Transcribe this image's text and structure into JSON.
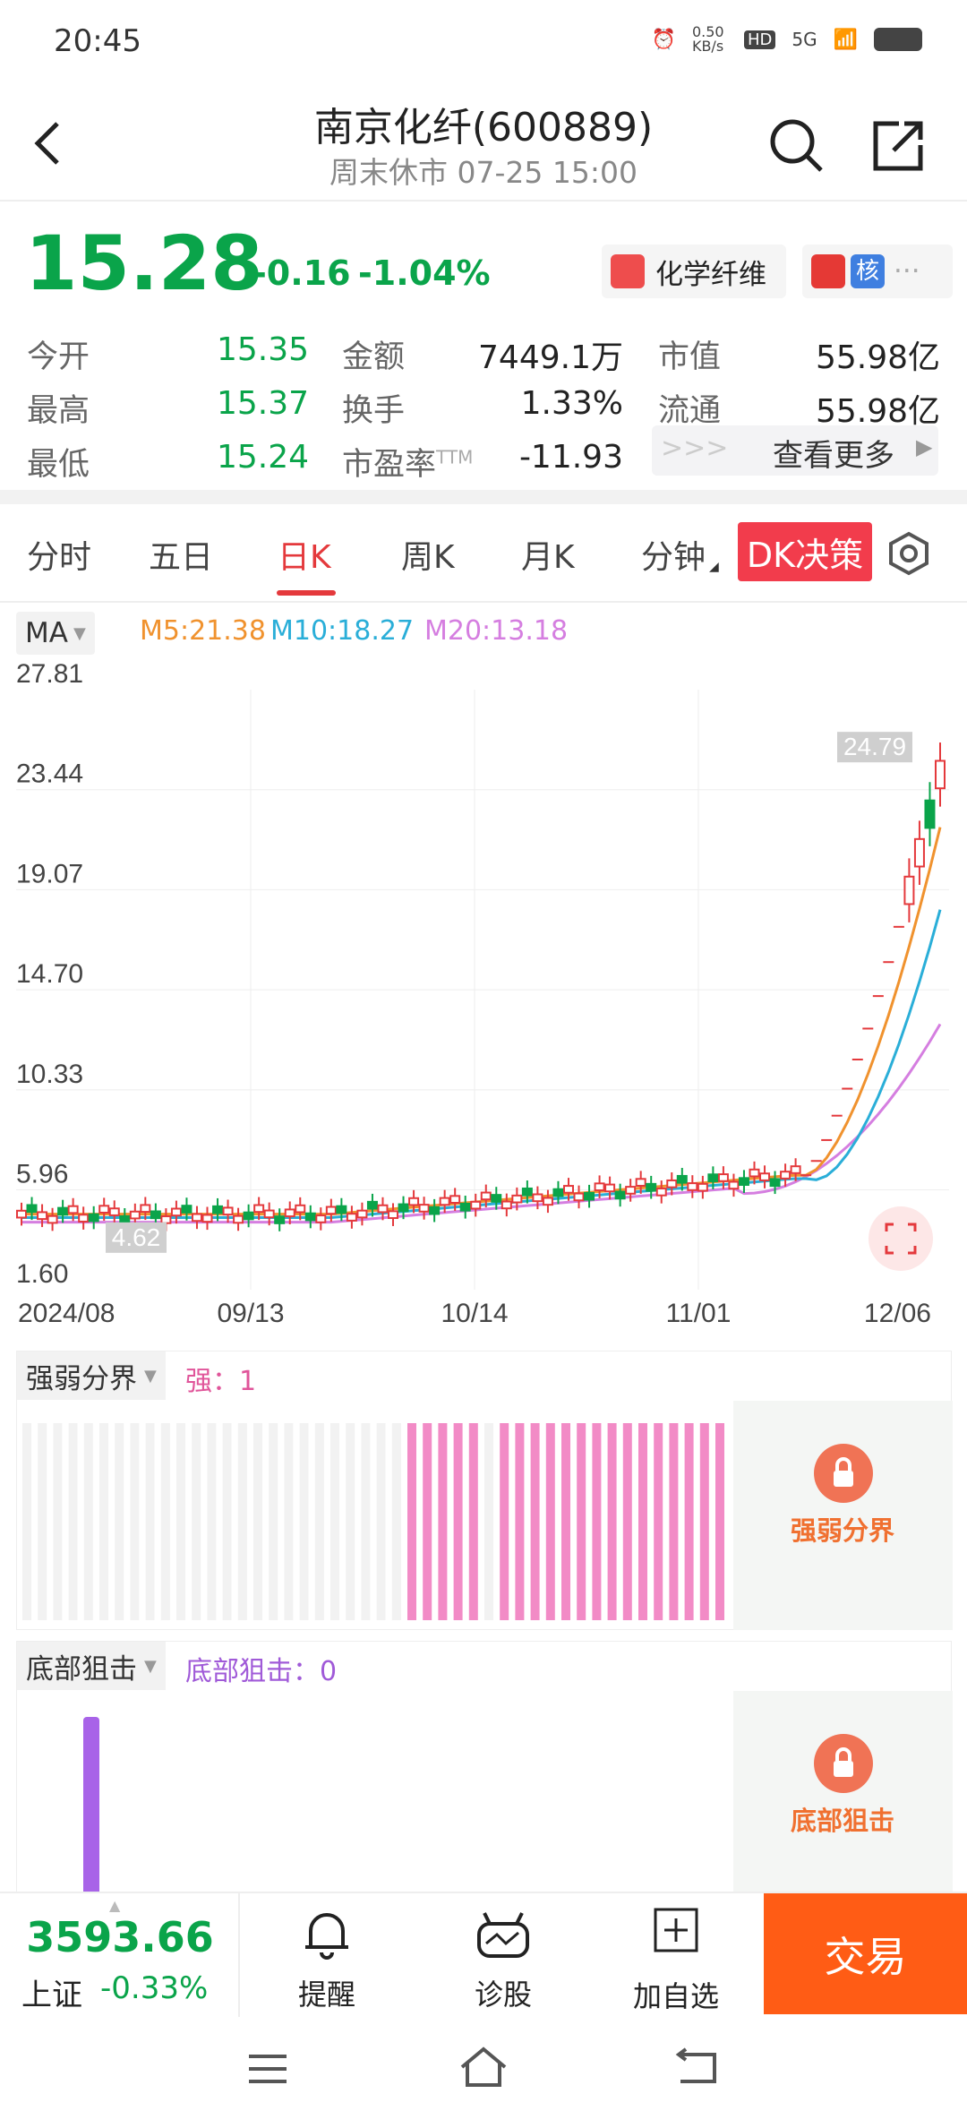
{
  "status_bar": {
    "time": "20:45",
    "net_speed": "0.50 KB/s",
    "hd": "HD",
    "signal": "5G"
  },
  "header": {
    "title": "南京化纤(600889)",
    "subtitle": "周末休市 07-25 15:00"
  },
  "quote": {
    "price": "15.28",
    "change": "-0.16",
    "change_pct": "-1.04%",
    "sector_tag": "化学纤维",
    "core_tag": "核",
    "more_dots": "···",
    "stats": [
      {
        "label": "今开",
        "value": "15.35"
      },
      {
        "label": "最高",
        "value": "15.37"
      },
      {
        "label": "最低",
        "value": "15.24"
      },
      {
        "label": "金额",
        "value": "7449.1万"
      },
      {
        "label": "换手",
        "value": "1.33%"
      },
      {
        "label": "市盈率",
        "label_sup": "TTM",
        "value": "-11.93"
      },
      {
        "label": "市值",
        "value": "55.98亿"
      },
      {
        "label": "流通",
        "value": "55.98亿"
      }
    ],
    "see_more": "查看更多",
    "see_more_arrows": ">>>"
  },
  "tabs": {
    "items": [
      "分时",
      "五日",
      "日K",
      "周K",
      "月K",
      "分钟"
    ],
    "active": "日K",
    "dk_label": "DK决策"
  },
  "indicator": {
    "selector": "MA",
    "m5": "M5:21.38",
    "m10": "M10:18.27",
    "m20": "M20:13.18"
  },
  "chart_data": {
    "type": "candlestick",
    "y_ticks": [
      "27.81",
      "23.44",
      "19.07",
      "14.70",
      "10.33",
      "5.96",
      "1.60"
    ],
    "ylim": [
      1.6,
      27.81
    ],
    "x_ticks": [
      "2024/08",
      "09/13",
      "10/14",
      "11/01",
      "12/06"
    ],
    "high_label": "24.79",
    "low_label": "4.62",
    "series": [
      {
        "name": "M5",
        "color": "#f0922e"
      },
      {
        "name": "M10",
        "color": "#2aaed8"
      },
      {
        "name": "M20",
        "color": "#d57ee0"
      }
    ]
  },
  "panel1": {
    "selector": "强弱分界",
    "readout": "强：1",
    "locked_label": "强弱分界"
  },
  "panel2": {
    "selector": "底部狙击",
    "readout": "底部狙击：0",
    "locked_label": "底部狙击"
  },
  "bottom": {
    "index_value": "3593.66",
    "index_name": "上证",
    "index_change": "-0.33%",
    "remind": "提醒",
    "diagnose": "诊股",
    "add_watch": "加自选",
    "trade": "交易"
  }
}
